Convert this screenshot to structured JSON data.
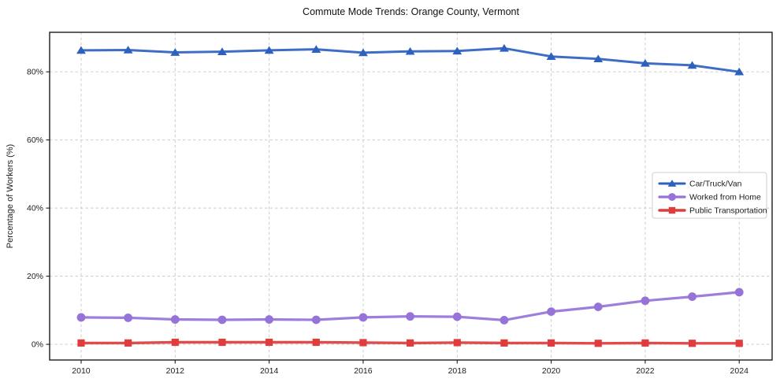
{
  "chart_data": {
    "type": "line",
    "title": "Commute Mode Trends: Orange County, Vermont",
    "ylabel": "Percentage of Workers (%)",
    "xlabel": "",
    "x": [
      2010,
      2011,
      2012,
      2013,
      2014,
      2015,
      2016,
      2017,
      2018,
      2019,
      2020,
      2021,
      2022,
      2023,
      2024
    ],
    "series": [
      {
        "name": "Car/Truck/Van",
        "marker": "triangle",
        "color": "#2d61c0",
        "line_width": 3,
        "values": [
          86.3,
          86.4,
          85.7,
          85.9,
          86.3,
          86.6,
          85.6,
          86.0,
          86.1,
          86.9,
          84.5,
          83.8,
          82.5,
          81.9,
          80.0
        ]
      },
      {
        "name": "Worked from Home",
        "marker": "circle",
        "color": "#9673d9",
        "line_width": 3.2,
        "values": [
          7.9,
          7.8,
          7.3,
          7.2,
          7.3,
          7.2,
          7.9,
          8.2,
          8.1,
          7.1,
          9.6,
          11.0,
          12.8,
          14.0,
          15.3
        ]
      },
      {
        "name": "Public Transportation",
        "marker": "square",
        "color": "#e03c3c",
        "line_width": 3.4,
        "values": [
          0.4,
          0.4,
          0.6,
          0.6,
          0.6,
          0.6,
          0.5,
          0.4,
          0.5,
          0.4,
          0.4,
          0.3,
          0.4,
          0.3,
          0.3
        ]
      }
    ],
    "xticks": {
      "values": [
        2010,
        2012,
        2014,
        2016,
        2018,
        2020,
        2022,
        2024
      ],
      "labels": [
        "2010",
        "2012",
        "2014",
        "2016",
        "2018",
        "2020",
        "2022",
        "2024"
      ]
    },
    "yticks": {
      "values": [
        0,
        20,
        40,
        60,
        80
      ],
      "labels": [
        "0%",
        "20%",
        "40%",
        "60%",
        "80%"
      ]
    },
    "xlim": [
      2009.33,
      2024.7
    ],
    "ylim": [
      -4.6,
      91.6
    ],
    "grid": true,
    "legend_position": "middle-right",
    "colors": {
      "grid": "#c9c9c9",
      "frame": "#1c1c1c",
      "tick_text": "#1c1c1c",
      "legend_border": "#cfcfcf",
      "background": "#ffffff"
    }
  }
}
